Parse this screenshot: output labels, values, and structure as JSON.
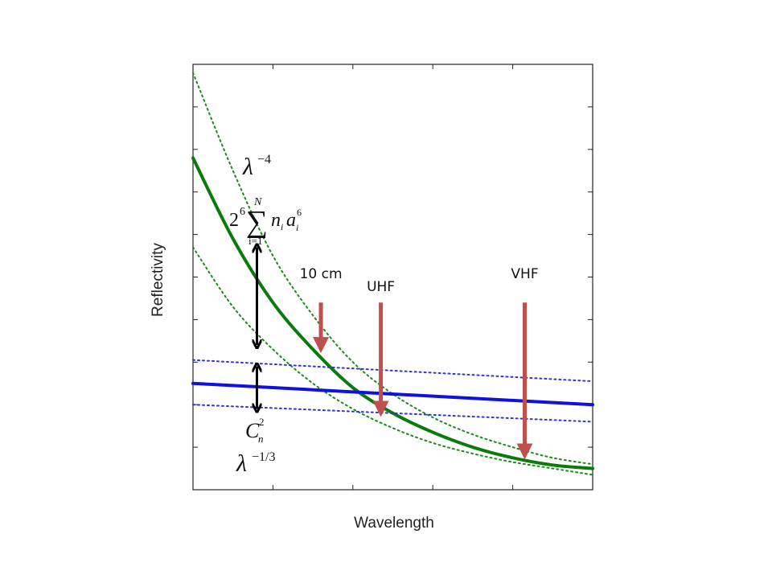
{
  "chart_data": {
    "type": "line",
    "xlabel": "Wavelength",
    "ylabel": "Reflectivity",
    "xlim": [
      0,
      1
    ],
    "ylim": [
      0,
      1
    ],
    "grid": false,
    "x_ticks": 6,
    "y_ticks": 11,
    "series": [
      {
        "role": "hydrometeor",
        "color": "#0a7a0a",
        "style": "solid",
        "x": [
          0,
          0.1,
          0.2,
          0.3,
          0.4,
          0.5,
          0.6,
          0.7,
          0.8,
          0.9,
          1.0
        ],
        "y": [
          0.78,
          0.59,
          0.44,
          0.33,
          0.24,
          0.18,
          0.135,
          0.1,
          0.075,
          0.058,
          0.05
        ]
      },
      {
        "role": "hydrometeor-upper",
        "color": "#1a8a1a",
        "style": "dotted",
        "x": [
          0,
          0.1,
          0.2,
          0.3,
          0.4,
          0.5,
          0.6,
          0.7,
          0.8,
          0.9,
          1.0
        ],
        "y": [
          0.98,
          0.75,
          0.55,
          0.41,
          0.3,
          0.225,
          0.17,
          0.13,
          0.1,
          0.075,
          0.06
        ]
      },
      {
        "role": "hydrometeor-lower",
        "color": "#1a8a1a",
        "style": "dotted",
        "x": [
          0,
          0.1,
          0.2,
          0.3,
          0.4,
          0.5,
          0.6,
          0.7,
          0.8,
          0.9,
          1.0
        ],
        "y": [
          0.57,
          0.43,
          0.33,
          0.25,
          0.19,
          0.145,
          0.11,
          0.085,
          0.065,
          0.05,
          0.035
        ]
      },
      {
        "role": "turbulence",
        "color": "#1010e0",
        "style": "solid",
        "x": [
          0,
          1.0
        ],
        "y": [
          0.25,
          0.2
        ]
      },
      {
        "role": "turbulence-upper",
        "color": "#3030e0",
        "style": "dotted",
        "x": [
          0,
          1.0
        ],
        "y": [
          0.305,
          0.255
        ]
      },
      {
        "role": "turbulence-lower",
        "color": "#3030e0",
        "style": "dotted",
        "x": [
          0,
          1.0
        ],
        "y": [
          0.2,
          0.16
        ]
      }
    ],
    "markers": [
      {
        "label": "10 cm",
        "x": 0.32,
        "y_top": 0.44,
        "y_tip": 0.34,
        "color": "#c0504d"
      },
      {
        "label": "UHF",
        "x": 0.47,
        "y_top": 0.44,
        "y_tip": 0.19,
        "color": "#c0504d"
      },
      {
        "label": "VHF",
        "x": 0.83,
        "y_top": 0.44,
        "y_tip": 0.09,
        "color": "#c0504d"
      }
    ],
    "annotations": {
      "lambda_minus4": {
        "base": "λ",
        "exp": "−4"
      },
      "sum_formula": {
        "coef": "2",
        "coef_exp": "6",
        "sym": "∑",
        "upper": "N",
        "lower": "i=1",
        "term_n": "n",
        "sub_n": "i",
        "term_a": "a",
        "sub_a": "i",
        "exp_a": "6"
      },
      "cn2": {
        "base": "C",
        "sub": "n",
        "sup": "2"
      },
      "lambda_minus13": {
        "base": "λ",
        "exp": "−1/3"
      }
    },
    "black_arrows": [
      {
        "x": 0.16,
        "y1": 0.57,
        "y2": 0.34
      },
      {
        "x": 0.16,
        "y1": 0.29,
        "y2": 0.19
      }
    ]
  }
}
